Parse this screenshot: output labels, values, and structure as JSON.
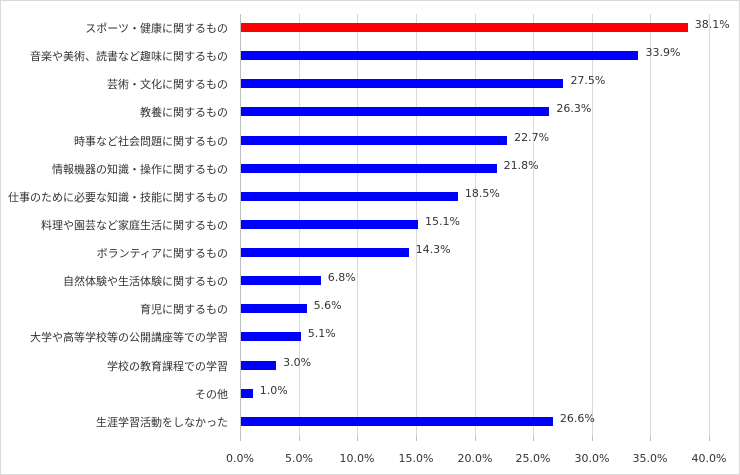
{
  "chart_data": {
    "type": "bar",
    "orientation": "horizontal",
    "title": "",
    "xlabel": "",
    "ylabel": "",
    "xlim": [
      0,
      40
    ],
    "xticks": [
      "0.0%",
      "5.0%",
      "10.0%",
      "15.0%",
      "20.0%",
      "25.0%",
      "30.0%",
      "35.0%",
      "40.0%"
    ],
    "grid": true,
    "legend": null,
    "colors": {
      "highlight": "#ff0000",
      "default": "#0000ff"
    },
    "categories": [
      "スポーツ・健康に関するもの",
      "音楽や美術、読書など趣味に関するもの",
      "芸術・文化に関するもの",
      "教養に関するもの",
      "時事など社会問題に関するもの",
      "情報機器の知識・操作に関するもの",
      "仕事のために必要な知識・技能に関するもの",
      "料理や園芸など家庭生活に関するもの",
      "ボランティアに関するもの",
      "自然体験や生活体験に関するもの",
      "育児に関するもの",
      "大学や高等学校等の公開講座等での学習",
      "学校の教育課程での学習",
      "その他",
      "生涯学習活動をしなかった"
    ],
    "values": [
      38.1,
      33.9,
      27.5,
      26.3,
      22.7,
      21.8,
      18.5,
      15.1,
      14.3,
      6.8,
      5.6,
      5.1,
      3.0,
      1.0,
      26.6
    ],
    "value_labels": [
      "38.1%",
      "33.9%",
      "27.5%",
      "26.3%",
      "22.7%",
      "21.8%",
      "18.5%",
      "15.1%",
      "14.3%",
      "6.8%",
      "5.6%",
      "5.1%",
      "3.0%",
      "1.0%",
      "26.6%"
    ],
    "highlight_index": 0
  }
}
